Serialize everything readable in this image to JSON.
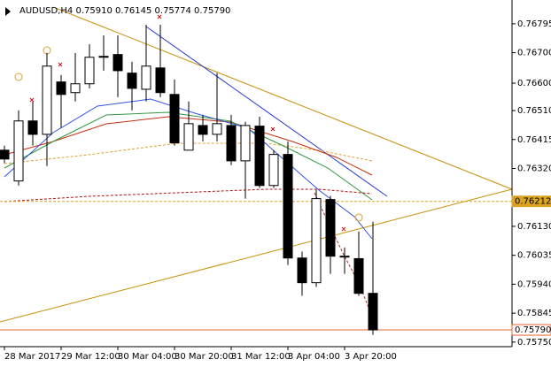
{
  "chart_data": {
    "type": "candlestick",
    "title": "AUDUSD,H4  0.75910 0.76145 0.75774 0.75790",
    "categories": [
      "28 Mar 2017",
      null,
      null,
      null,
      "29 Mar 12:00",
      null,
      null,
      null,
      "30 Mar 04:00",
      null,
      null,
      null,
      "30 Mar 20:00",
      null,
      null,
      null,
      "31 Mar 12:00",
      null,
      null,
      null,
      "3 Apr 04:00",
      null,
      null,
      null,
      "3 Apr 20:00",
      null,
      null
    ],
    "open": [
      0.7638,
      0.76279,
      0.76476,
      0.76432,
      0.76604,
      0.76569,
      0.76598,
      0.76688,
      0.76694,
      0.76633,
      0.7658,
      0.7665,
      0.76563,
      0.7638,
      0.76461,
      0.76432,
      0.76461,
      0.76345,
      0.76459,
      0.76264,
      0.76366,
      0.76026,
      0.75945,
      0.76218,
      0.76032,
      0.76024,
      0.7591
    ],
    "high": [
      0.76395,
      0.76511,
      0.7654,
      0.76699,
      0.76627,
      0.76699,
      0.76728,
      0.76757,
      0.76757,
      0.7667,
      0.76792,
      0.76792,
      0.76612,
      0.7654,
      0.76496,
      0.76633,
      0.76496,
      0.76473,
      0.7649,
      0.7638,
      0.76409,
      0.76047,
      0.7625,
      0.7623,
      0.76061,
      0.76113,
      0.76145
    ],
    "low": [
      0.76337,
      0.76264,
      0.76395,
      0.76328,
      0.76453,
      0.7654,
      0.76583,
      0.76641,
      0.76554,
      0.76511,
      0.7654,
      0.76554,
      0.76395,
      0.7638,
      0.76409,
      0.76409,
      0.76331,
      0.76221,
      0.76256,
      0.76256,
      0.76003,
      0.75902,
      0.75931,
      0.75974,
      0.75974,
      0.75902,
      0.75774
    ],
    "close": [
      0.76351,
      0.76476,
      0.76432,
      0.76656,
      0.76563,
      0.76598,
      0.76685,
      0.76685,
      0.76641,
      0.76583,
      0.76656,
      0.76569,
      0.76404,
      0.76467,
      0.76432,
      0.76467,
      0.76345,
      0.76461,
      0.76264,
      0.76366,
      0.76026,
      0.75945,
      0.76221,
      0.76032,
      0.76032,
      0.7591,
      0.7579
    ],
    "ylim": [
      0.75735,
      0.76873
    ],
    "yticks": [
      0.76795,
      {
        "value": 0.767,
        "label": "0.76700"
      },
      {
        "value": 0.766,
        "label": "0.76600"
      },
      {
        "value": 0.7651,
        "label": "0.76510"
      },
      0.76415,
      {
        "value": 0.7632,
        "label": "0.76320"
      },
      {
        "value": 0.7613,
        "label": "0.76130"
      },
      0.76035,
      {
        "value": 0.7594,
        "label": "0.75940"
      },
      0.75845,
      {
        "value": 0.7575,
        "label": "0.75750"
      }
    ],
    "marked_prices": [
      0.76212,
      {
        "value": 0.7579,
        "label": "0.75790"
      }
    ],
    "marked_colors": [
      "#daa520",
      "#e8602c"
    ],
    "grid": false
  }
}
